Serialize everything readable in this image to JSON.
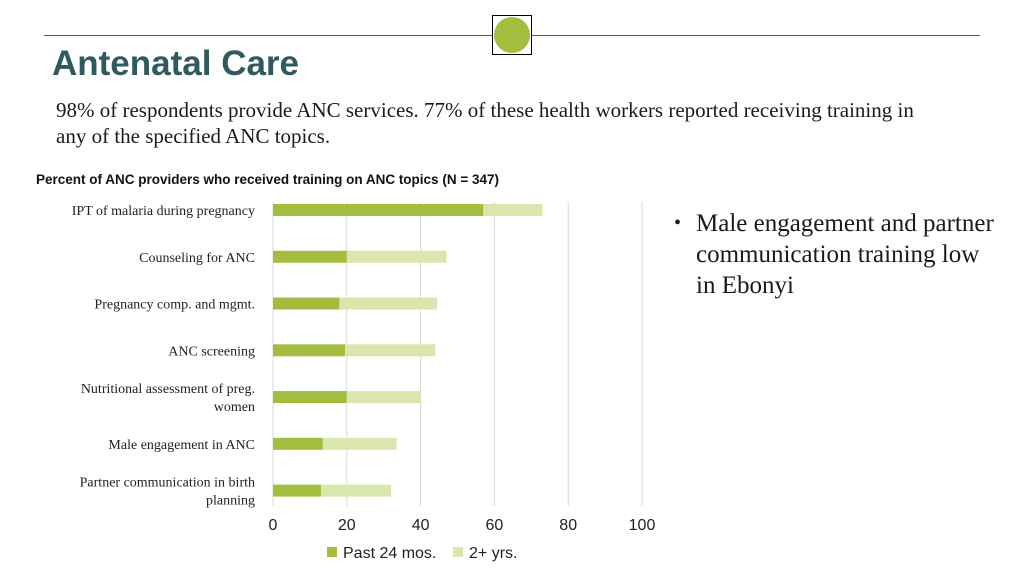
{
  "header": {
    "title": "Antenatal Care",
    "subtitle": "98% of respondents provide ANC services. 77% of these health workers reported receiving training in any of the specified ANC topics.",
    "accent_color": "#a3bd3e"
  },
  "bullet": {
    "text": "Male engagement and partner communication training low in Ebonyi"
  },
  "chart_data": {
    "type": "bar",
    "orientation": "horizontal",
    "stacked": true,
    "title": "Percent of ANC providers who received training on ANC topics (N = 347)",
    "categories": [
      [
        "IPT of malaria during pregnancy"
      ],
      [
        "Counseling for ANC"
      ],
      [
        "Pregnancy comp. and mgmt."
      ],
      [
        "ANC screening"
      ],
      [
        "Nutritional assessment of preg.",
        "women"
      ],
      [
        "Male engagement in ANC"
      ],
      [
        "Partner communication in birth",
        "planning"
      ]
    ],
    "series": [
      {
        "name": "Past 24 mos.",
        "color": "#a3bd3e",
        "values": [
          57,
          20,
          18,
          19.5,
          20,
          13.5,
          13
        ]
      },
      {
        "name": "2+ yrs.",
        "color": "#d9e6ad",
        "values": [
          16,
          27,
          26.5,
          24.5,
          20,
          20,
          19
        ]
      }
    ],
    "xlim": [
      0,
      100
    ],
    "xticks": [
      0,
      20,
      40,
      60,
      80,
      100
    ],
    "grid": true,
    "legend": "bottom"
  }
}
